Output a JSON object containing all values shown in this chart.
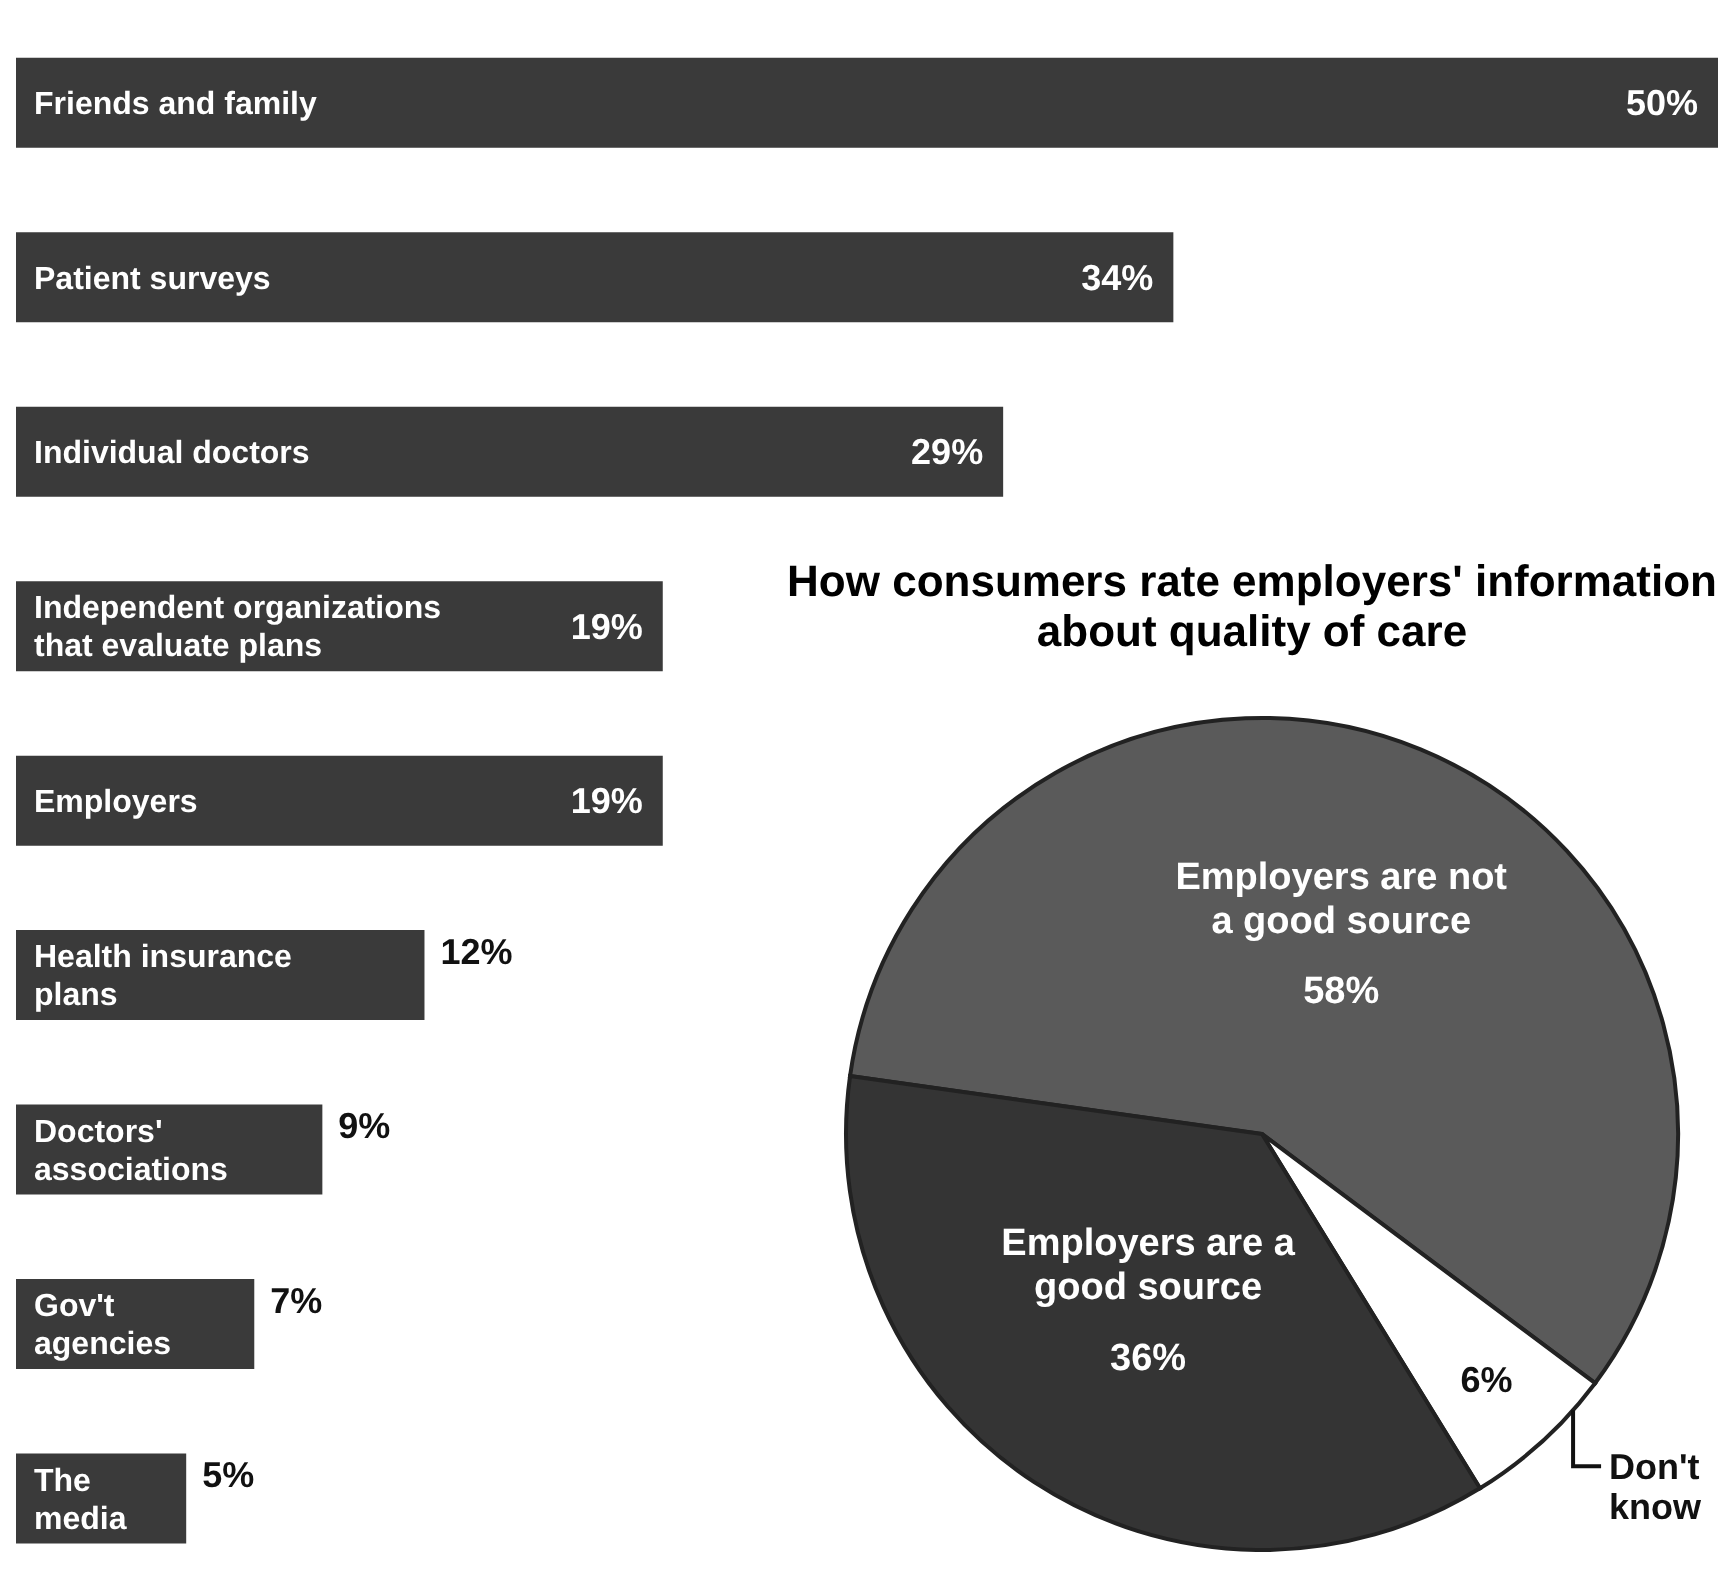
{
  "chart_data": [
    {
      "type": "bar",
      "orientation": "horizontal",
      "categories": [
        "Friends and family",
        "Patient surveys",
        "Individual doctors",
        "Independent organizations that evaluate plans",
        "Employers",
        "Health insurance plans",
        "Doctors' associations",
        "Gov't agencies",
        "The media"
      ],
      "values": [
        50,
        34,
        29,
        19,
        19,
        12,
        9,
        7,
        5
      ],
      "color": "#3a3a3a",
      "value_labels": [
        "50%",
        "34%",
        "29%",
        "19%",
        "19%",
        "12%",
        "9%",
        "7%",
        "5%"
      ]
    },
    {
      "type": "pie",
      "title": "How consumers rate employers' information about quality of care",
      "categories": [
        "Employers are not a good source",
        "Don't know",
        "Employers are a good source"
      ],
      "values": [
        58,
        6,
        36
      ],
      "colors": [
        "#5a5a5a",
        "#ffffff",
        "#343434"
      ],
      "value_labels": [
        "58%",
        "6%",
        "36%"
      ]
    }
  ]
}
